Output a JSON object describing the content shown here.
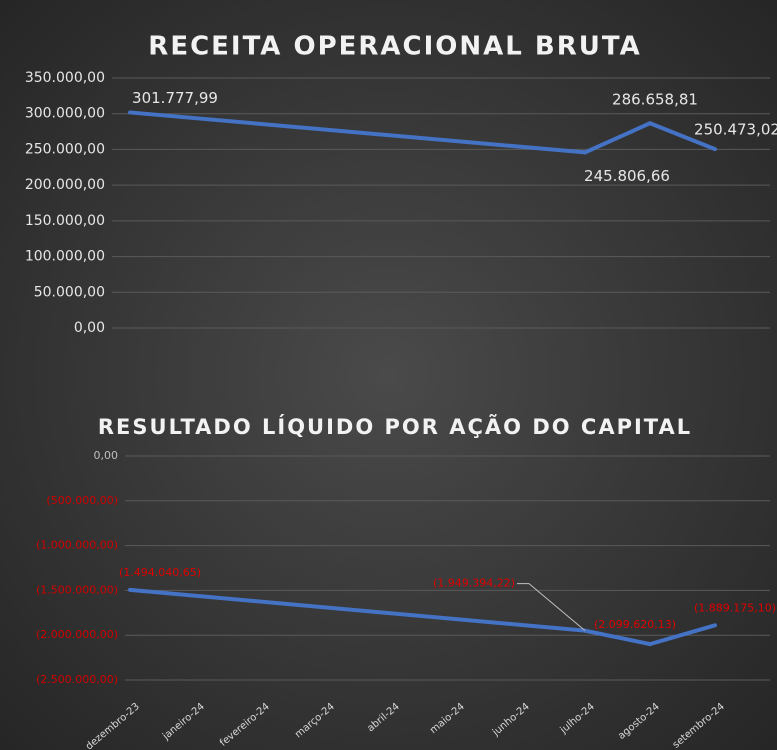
{
  "chart_data": [
    {
      "type": "line",
      "title": "RECEITA OPERACIONAL BRUTA",
      "values": [
        301777.99,
        null,
        null,
        null,
        null,
        null,
        null,
        245806.66,
        286658.81,
        250473.02
      ],
      "value_labels": [
        "301.777,99",
        null,
        null,
        null,
        null,
        null,
        null,
        "245.806,66",
        "286.658,81",
        "250.473,02"
      ],
      "color": "#4472c4",
      "connect_gaps": true,
      "grid": true,
      "ylim": [
        0,
        350000
      ],
      "yticks": [
        {
          "value": 0,
          "label": "0,00"
        },
        {
          "value": 50000,
          "label": "50.000,00"
        },
        {
          "value": 100000,
          "label": "100.000,00"
        },
        {
          "value": 150000,
          "label": "150.000,00"
        },
        {
          "value": 200000,
          "label": "200.000,00"
        },
        {
          "value": 250000,
          "label": "250.000,00"
        },
        {
          "value": 300000,
          "label": "300.000,00"
        },
        {
          "value": 350000,
          "label": "350.000,00"
        }
      ]
    },
    {
      "type": "line",
      "title": "RESULTADO LÍQUIDO POR AÇÃO DO CAPITAL",
      "categories": [
        "dezembro-23",
        "janeiro-24",
        "fevereiro-24",
        "março-24",
        "abril-24",
        "maio-24",
        "junho-24",
        "julho-24",
        "agosto-24",
        "setembro-24"
      ],
      "values": [
        -1494040.65,
        null,
        null,
        null,
        null,
        null,
        null,
        -1949394.22,
        -2099620.13,
        -1889175.1
      ],
      "value_labels": [
        "(1.494.040,65)",
        null,
        null,
        null,
        null,
        null,
        null,
        "(1.949.394,22)",
        "(2.099.620,13)",
        "(1.889.175,10)"
      ],
      "color": "#4472c4",
      "connect_gaps": true,
      "grid": true,
      "ylim": [
        -2500000,
        0
      ],
      "yticks": [
        {
          "value": 0,
          "label": "0,00"
        },
        {
          "value": -500000,
          "label": "(500.000,00)"
        },
        {
          "value": -1000000,
          "label": "(1.000.000,00)"
        },
        {
          "value": -1500000,
          "label": "(1.500.000,00)"
        },
        {
          "value": -2000000,
          "label": "(2.000.000,00)"
        },
        {
          "value": -2500000,
          "label": "(2.500.000,00)"
        }
      ]
    }
  ]
}
